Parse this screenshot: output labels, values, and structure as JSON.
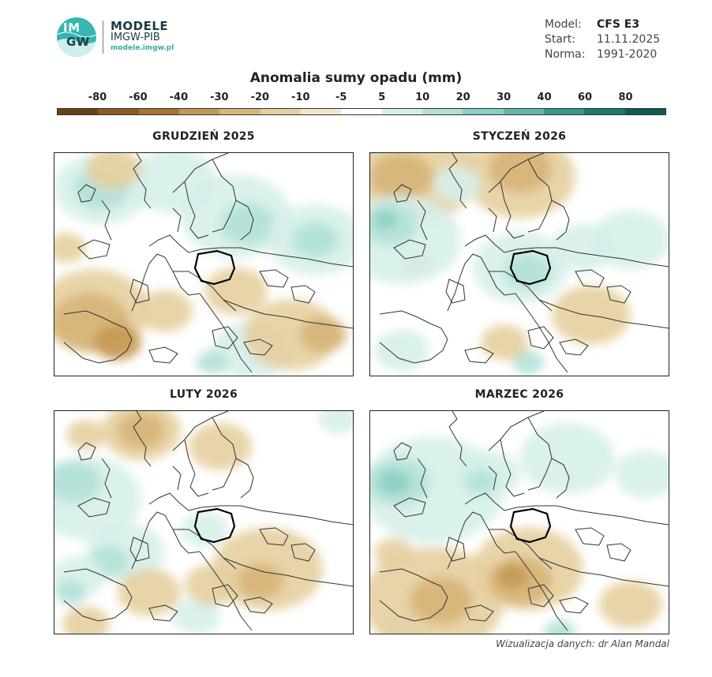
{
  "brand": {
    "logo_text_top": "IM",
    "logo_text_bottom": "GW",
    "title": "MODELE",
    "subtitle": "IMGW-PIB",
    "url": "modele.imgw.pl"
  },
  "meta": [
    {
      "key": "Model:",
      "value": "CFS E3"
    },
    {
      "key": "Start:",
      "value": "11.11.2025"
    },
    {
      "key": "Norma:",
      "value": "1991-2020"
    }
  ],
  "legend": {
    "title": "Anomalia sumy opadu (mm)",
    "ticks": [
      "-80",
      "-60",
      "-40",
      "-30",
      "-20",
      "-10",
      "-5",
      "5",
      "10",
      "20",
      "30",
      "40",
      "60",
      "80"
    ],
    "colors": [
      "#6b3f14",
      "#8c5a22",
      "#a87433",
      "#c49852",
      "#d6b578",
      "#e6cf9f",
      "#f3e6c8",
      "#ffffff",
      "#d6efea",
      "#b2e1d8",
      "#89cfc2",
      "#5db8a8",
      "#34998a",
      "#1a7a6c",
      "#0d5b51"
    ]
  },
  "panels": [
    {
      "title": "GRUDZIEŃ 2025"
    },
    {
      "title": "STYCZEŃ 2026"
    },
    {
      "title": "LUTY 2026"
    },
    {
      "title": "MARZEC 2026"
    }
  ],
  "credit": "Wizualizacja danych: dr Alan Mandal"
}
